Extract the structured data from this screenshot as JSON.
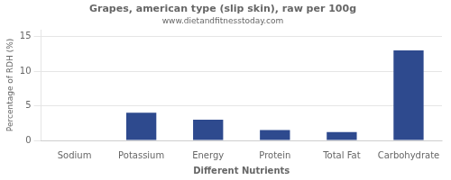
{
  "chart_data": {
    "type": "bar",
    "title": "Grapes, american type (slip skin), raw per 100g",
    "subtitle": "www.dietandfitnesstoday.com",
    "xlabel": "Different Nutrients",
    "ylabel": "Percentage of RDH (%)",
    "categories": [
      "Sodium",
      "Potassium",
      "Energy",
      "Protein",
      "Total Fat",
      "Carbohydrate"
    ],
    "values": [
      0,
      4,
      3,
      1.5,
      1.2,
      13
    ],
    "color": "#2e4a8e",
    "ylim": [
      0,
      16
    ],
    "yticks": [
      0,
      5,
      10,
      15
    ],
    "grid": true
  }
}
